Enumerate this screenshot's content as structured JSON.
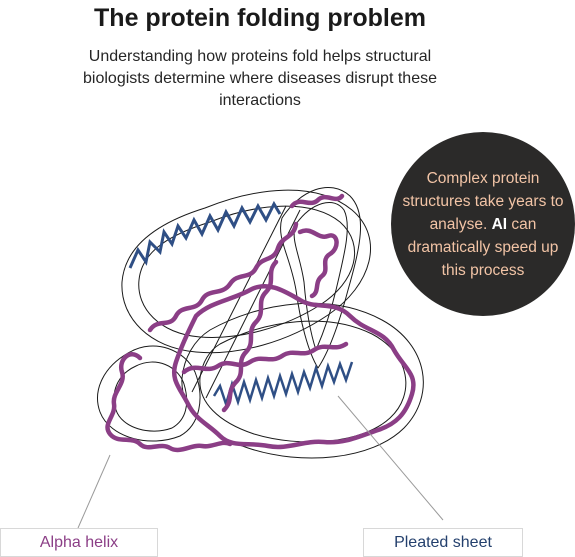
{
  "header": {
    "title": "The protein folding problem",
    "subtitle": "Understanding how proteins fold helps structural biologists determine where diseases disrupt these interactions"
  },
  "callout": {
    "text_before": "Complex protein structures take years to analyse. ",
    "highlight": "AI",
    "text_after": " can dramatically speed up this process"
  },
  "labels": {
    "alpha_helix": "Alpha helix",
    "pleated_sheet": "Pleated sheet"
  },
  "colors": {
    "alpha_helix": "#8b3e86",
    "pleated_sheet": "#2f4f85",
    "outline": "#1a1a1a",
    "callout_bg": "#2b2a29",
    "callout_text": "#f2c4a6"
  }
}
